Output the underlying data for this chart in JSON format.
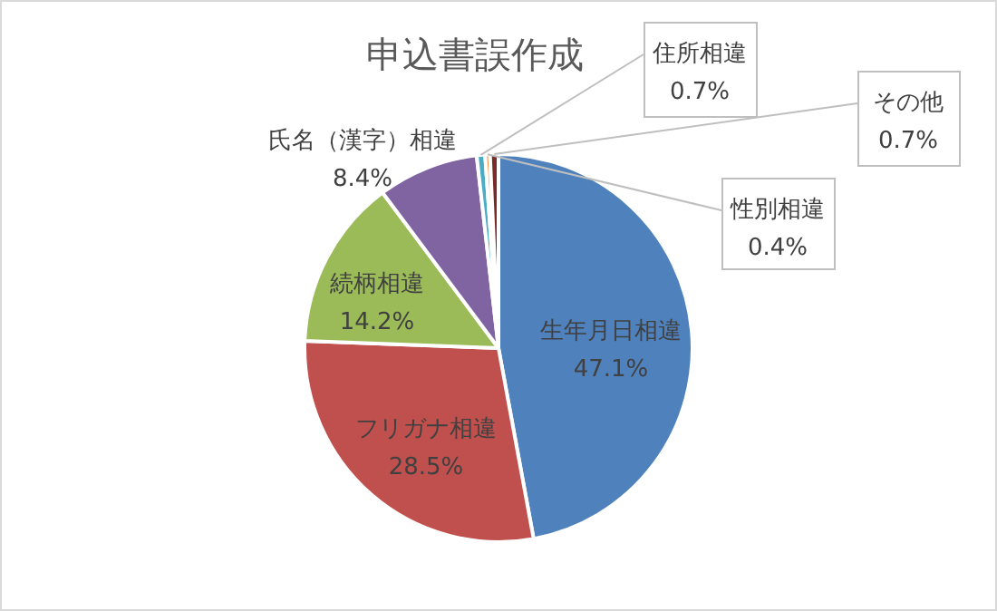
{
  "chart_data": {
    "type": "pie",
    "title": "申込書誤作成",
    "categories": [
      "生年月日相違",
      "フリガナ相違",
      "続柄相違",
      "氏名（漢字）相違",
      "住所相違",
      "性別相違",
      "その他"
    ],
    "values": [
      47.1,
      28.5,
      14.2,
      8.4,
      0.7,
      0.4,
      0.7
    ],
    "value_labels": [
      "47.1%",
      "28.5%",
      "14.2%",
      "8.4%",
      "0.7%",
      "0.4%",
      "0.7%"
    ],
    "colors": [
      "#4f81bd",
      "#c0504d",
      "#9bbb59",
      "#8064a2",
      "#4bacc6",
      "#f79646",
      "#772c2a"
    ],
    "legend": false
  }
}
